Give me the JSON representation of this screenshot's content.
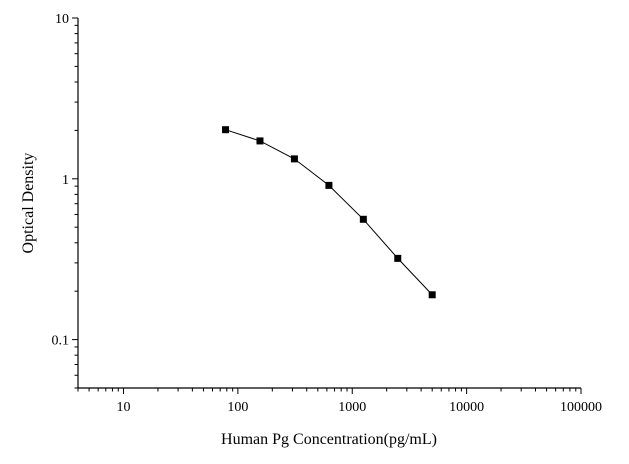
{
  "chart_data": {
    "type": "scatter",
    "title": "",
    "xlabel": "Human Pg Concentration(pg/mL)",
    "ylabel": "Optical Density",
    "x_scale": "log",
    "y_scale": "log",
    "xlim": [
      4,
      100000
    ],
    "ylim": [
      0.05,
      10
    ],
    "x_ticks": [
      10,
      100,
      1000,
      10000,
      100000
    ],
    "x_tick_labels": [
      "10",
      "100",
      "1000",
      "10000",
      "100000"
    ],
    "y_ticks": [
      0.1,
      1,
      10
    ],
    "y_tick_labels": [
      "0.1",
      "1",
      "10"
    ],
    "grid": false,
    "legend": "none",
    "series": [
      {
        "x": [
          78,
          156,
          312,
          625,
          1250,
          2500,
          5000
        ],
        "y": [
          2.02,
          1.72,
          1.33,
          0.91,
          0.56,
          0.32,
          0.19
        ],
        "marker": "square",
        "connected": true,
        "color": "#000000"
      }
    ]
  }
}
